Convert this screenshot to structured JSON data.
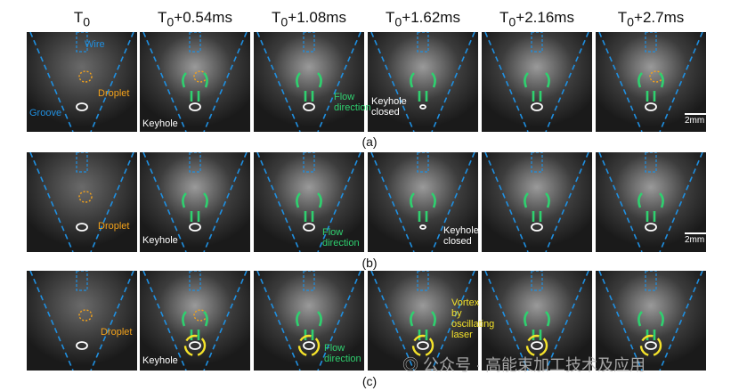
{
  "columns": [
    "T",
    "T",
    "T",
    "T",
    "T",
    "T"
  ],
  "time_labels": [
    {
      "base": "T",
      "sub": "0",
      "suffix": ""
    },
    {
      "base": "T",
      "sub": "0",
      "suffix": "+0.54ms"
    },
    {
      "base": "T",
      "sub": "0",
      "suffix": "+1.08ms"
    },
    {
      "base": "T",
      "sub": "0",
      "suffix": "+1.62ms"
    },
    {
      "base": "T",
      "sub": "0",
      "suffix": "+2.16ms"
    },
    {
      "base": "T",
      "sub": "0",
      "suffix": "+2.7ms"
    }
  ],
  "rows": [
    {
      "caption": "(a)"
    },
    {
      "caption": "(b)"
    },
    {
      "caption": "(c)"
    }
  ],
  "annotations": {
    "wire": "Wire",
    "droplet": "Droplet",
    "groove": "Groove",
    "keyhole": "Keyhole",
    "flow": "Flow",
    "direction": "direction",
    "keyhole_closed_1": "Keyhole",
    "keyhole_closed_2": "closed",
    "vortex_1": "Vortex",
    "vortex_2": "by",
    "vortex_3": "oscillating",
    "vortex_4": "laser"
  },
  "scale_label": "2mm",
  "watermark": "公众号 · 高能束加工技术及应用",
  "colors": {
    "groove": "#1f8fe0",
    "droplet": "#f4a21a",
    "flow": "#2fd06f",
    "keyhole": "#ffffff",
    "vortex": "#f5e32a"
  }
}
